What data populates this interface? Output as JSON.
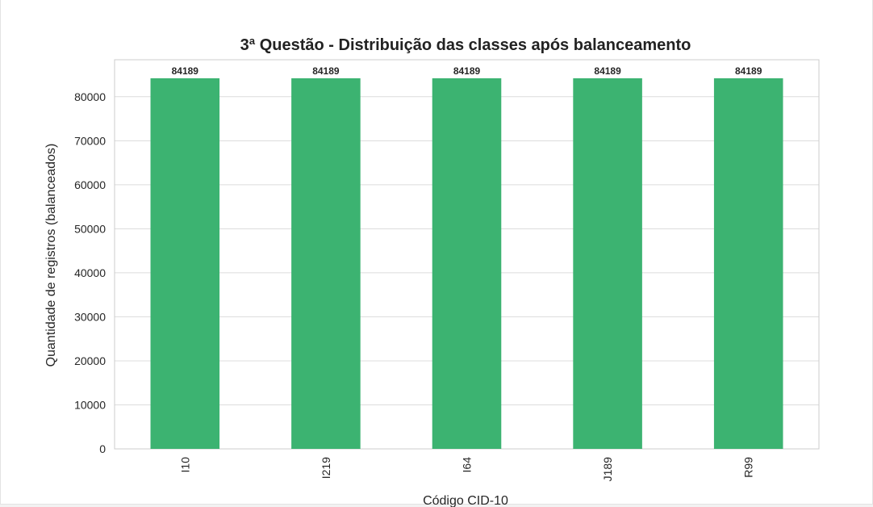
{
  "chart_data": {
    "type": "bar",
    "title": "3ª Questão - Distribuição das classes após balanceamento",
    "xlabel": "Código CID-10",
    "ylabel": "Quantidade de registros (balanceados)",
    "categories": [
      "I10",
      "I219",
      "I64",
      "J189",
      "R99"
    ],
    "values": [
      84189,
      84189,
      84189,
      84189,
      84189
    ],
    "data_labels": [
      "84189",
      "84189",
      "84189",
      "84189",
      "84189"
    ],
    "yticks": [
      0,
      10000,
      20000,
      30000,
      40000,
      50000,
      60000,
      70000,
      80000
    ],
    "ylim": [
      0,
      88398
    ],
    "grid": "horizontal",
    "bar_color": "#3cb371",
    "x_tick_rotation": 90
  }
}
